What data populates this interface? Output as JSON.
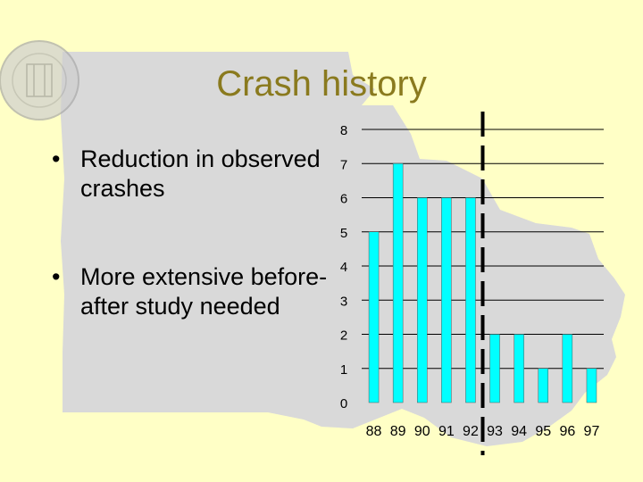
{
  "slide": {
    "title": "Crash history",
    "bullets": [
      "Reduction in observed crashes",
      "More extensive before-after study needed"
    ],
    "bullet_marker": "•"
  },
  "colors": {
    "background": "#ffffc6",
    "map": "#d9d9d9",
    "title": "#8a7a1e",
    "bar": "#00ffff",
    "bar_edge": "#555555"
  },
  "chart_data": {
    "type": "bar",
    "categories": [
      "88",
      "89",
      "90",
      "91",
      "92",
      "93",
      "94",
      "95",
      "96",
      "97"
    ],
    "values": [
      5,
      7,
      6,
      6,
      6,
      2,
      2,
      1,
      2,
      1
    ],
    "ylim": [
      0,
      8
    ],
    "yticks": [
      0,
      1,
      2,
      3,
      4,
      5,
      6,
      7,
      8
    ],
    "grid": true,
    "legend": "none",
    "annotations": [
      {
        "type": "dashed-vertical-line",
        "between_categories": [
          "92",
          "93"
        ]
      }
    ]
  }
}
